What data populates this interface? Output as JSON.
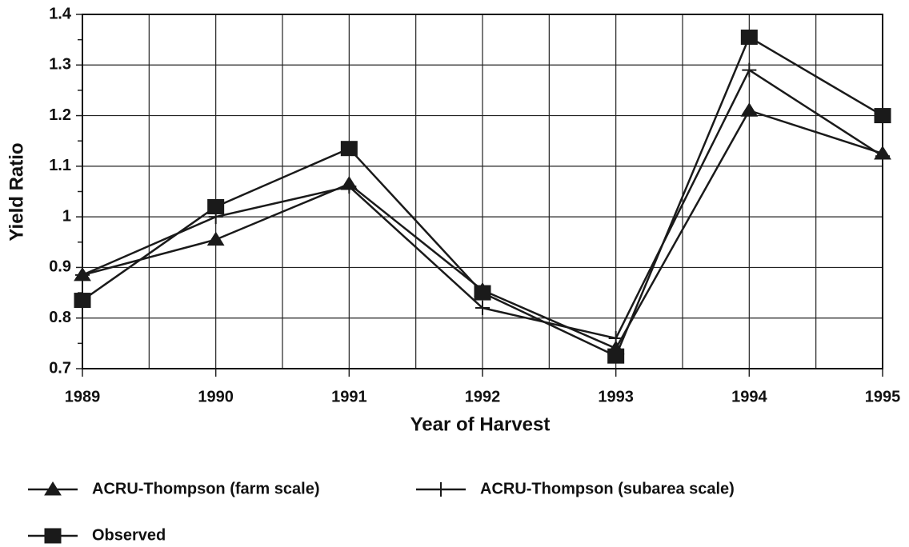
{
  "chart_data": {
    "type": "line",
    "x_label": "Year of Harvest",
    "y_label": "Yield Ratio",
    "x": [
      1989,
      1990,
      1991,
      1992,
      1993,
      1994,
      1995
    ],
    "xlim": [
      1989,
      1995
    ],
    "xticks": [
      1989,
      1990,
      1991,
      1992,
      1993,
      1994,
      1995
    ],
    "ylim": [
      0.7,
      1.4
    ],
    "yticks": [
      0.7,
      0.8,
      0.9,
      1,
      1.1,
      1.2,
      1.3,
      1.4
    ],
    "grid": true,
    "series": [
      {
        "name": "ACRU-Thompson (farm scale)",
        "color": "#1a1a1a",
        "marker": "triangle",
        "values": [
          0.885,
          0.955,
          1.065,
          0.855,
          0.74,
          1.21,
          1.125
        ]
      },
      {
        "name": "ACRU-Thompson (subarea scale)",
        "color": "#1a1a1a",
        "marker": "plus",
        "values": [
          0.885,
          1.0,
          1.06,
          0.82,
          0.76,
          1.29,
          1.12
        ]
      },
      {
        "name": "Observed",
        "color": "#1a1a1a",
        "marker": "square",
        "values": [
          0.835,
          1.02,
          1.135,
          0.85,
          0.725,
          1.355,
          1.2
        ]
      }
    ]
  }
}
